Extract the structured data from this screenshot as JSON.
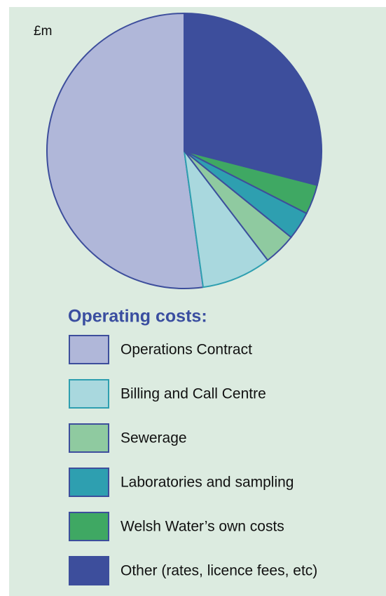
{
  "chart_data": {
    "type": "pie",
    "unit_label": "£m",
    "legend_title": "Operating costs:",
    "categories": [
      "Operations Contract",
      "Billing and Call Centre",
      "Sewerage",
      "Laboratories and sampling",
      "Welsh Water’s own costs",
      "Other (rates, licence fees, etc)"
    ],
    "values": [
      52.2,
      8.2,
      3.8,
      3.3,
      3.5,
      29.0
    ],
    "colors": [
      "#b0b7d9",
      "#a9d8de",
      "#8fcaa0",
      "#2e9fb0",
      "#3fa863",
      "#3d4e9c"
    ],
    "stroke_colors": [
      "#3d4e9c",
      "#2e9fb0",
      "#3d4e9c",
      "#3d4e9c",
      "#3d4e9c",
      "#3d4e9c"
    ]
  }
}
